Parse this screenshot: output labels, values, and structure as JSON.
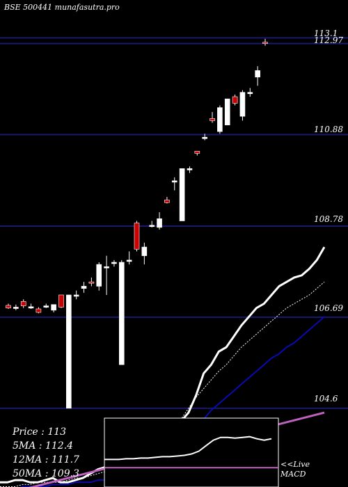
{
  "header": "BSE 500441 munafasutra.pro",
  "info": {
    "price": "Price : 113",
    "ma5": "5MA : 112.4",
    "ma12": "12MA : 111.7",
    "ma50": "50MA : 109.3"
  },
  "macd_label": {
    "line1": "<<Live",
    "line2": "MACD"
  },
  "colors": {
    "background": "#000000",
    "gridline": "#191970",
    "up_candle": "#ffffff",
    "down_candle": "#cc0000",
    "ma_white": "#ffffff",
    "ma_blue": "#0a0ab4",
    "ma_purple": "#c060c0",
    "macd_line": "#ffffff",
    "macd_signal": "#c060c0"
  },
  "chart_data": {
    "type": "candlestick",
    "ylim": [
      102.5,
      113.6
    ],
    "price_levels": [
      "113.1",
      "112.97",
      "110.88",
      "108.78",
      "106.69",
      "104.6"
    ],
    "candles": [
      {
        "o": 106.96,
        "h": 107.0,
        "l": 106.88,
        "c": 106.9
      },
      {
        "o": 106.92,
        "h": 106.98,
        "l": 106.85,
        "c": 106.92
      },
      {
        "o": 107.05,
        "h": 107.1,
        "l": 106.9,
        "c": 106.95
      },
      {
        "o": 106.93,
        "h": 107.0,
        "l": 106.88,
        "c": 106.93
      },
      {
        "o": 106.88,
        "h": 106.92,
        "l": 106.78,
        "c": 106.8
      },
      {
        "o": 106.95,
        "h": 107.0,
        "l": 106.9,
        "c": 106.95
      },
      {
        "o": 106.85,
        "h": 106.98,
        "l": 106.8,
        "c": 106.98
      },
      {
        "o": 107.2,
        "h": 107.2,
        "l": 106.9,
        "c": 106.92
      },
      {
        "o": 104.6,
        "h": 107.2,
        "l": 104.6,
        "c": 107.2
      },
      {
        "o": 107.2,
        "h": 107.3,
        "l": 107.1,
        "c": 107.2
      },
      {
        "o": 107.35,
        "h": 107.5,
        "l": 107.25,
        "c": 107.4
      },
      {
        "o": 107.5,
        "h": 107.6,
        "l": 107.4,
        "c": 107.48
      },
      {
        "o": 107.4,
        "h": 107.95,
        "l": 107.3,
        "c": 107.9
      },
      {
        "o": 107.85,
        "h": 108.1,
        "l": 107.2,
        "c": 107.85
      },
      {
        "o": 107.95,
        "h": 108.0,
        "l": 107.85,
        "c": 107.95
      },
      {
        "o": 105.6,
        "h": 108.0,
        "l": 105.6,
        "c": 107.95
      },
      {
        "o": 108.0,
        "h": 108.2,
        "l": 107.9,
        "c": 108.0
      },
      {
        "o": 108.85,
        "h": 108.9,
        "l": 108.2,
        "c": 108.25
      },
      {
        "o": 108.1,
        "h": 108.4,
        "l": 107.9,
        "c": 108.3
      },
      {
        "o": 108.8,
        "h": 108.9,
        "l": 108.75,
        "c": 108.8
      },
      {
        "o": 108.75,
        "h": 109.1,
        "l": 108.7,
        "c": 108.95
      },
      {
        "o": 109.38,
        "h": 109.45,
        "l": 109.3,
        "c": 109.32
      },
      {
        "o": 109.8,
        "h": 109.9,
        "l": 109.6,
        "c": 109.82
      },
      {
        "o": 108.9,
        "h": 110.1,
        "l": 108.9,
        "c": 110.1
      },
      {
        "o": 110.1,
        "h": 110.15,
        "l": 110.0,
        "c": 110.1
      },
      {
        "o": 110.5,
        "h": 110.5,
        "l": 110.4,
        "c": 110.45
      },
      {
        "o": 110.8,
        "h": 110.9,
        "l": 110.75,
        "c": 110.82
      },
      {
        "o": 111.25,
        "h": 111.4,
        "l": 111.15,
        "c": 111.2
      },
      {
        "o": 110.95,
        "h": 111.55,
        "l": 110.9,
        "c": 111.5
      },
      {
        "o": 111.1,
        "h": 111.7,
        "l": 111.1,
        "c": 111.7
      },
      {
        "o": 111.75,
        "h": 111.8,
        "l": 111.55,
        "c": 111.6
      },
      {
        "o": 111.3,
        "h": 111.9,
        "l": 111.2,
        "c": 111.85
      },
      {
        "o": 111.85,
        "h": 111.95,
        "l": 111.75,
        "c": 111.85
      },
      {
        "o": 112.2,
        "h": 112.45,
        "l": 112.0,
        "c": 112.35
      },
      {
        "o": 113.0,
        "h": 113.08,
        "l": 112.92,
        "c": 112.97
      }
    ],
    "ma_white": [
      102.9,
      102.9,
      102.95,
      102.95,
      102.9,
      102.9,
      102.95,
      103.0,
      102.9,
      102.9,
      102.95,
      103.0,
      103.1,
      103.2,
      103.25,
      103.1,
      103.1,
      103.2,
      103.3,
      103.5,
      103.6,
      103.6,
      103.8,
      104.0,
      104.3,
      104.5,
      104.9,
      105.4,
      105.6,
      105.9,
      106.0,
      106.25,
      106.5,
      106.7,
      106.9,
      107.0,
      107.2,
      107.4,
      107.5,
      107.6,
      107.65,
      107.8,
      108.0,
      108.3
    ],
    "ma_wdot": [
      102.8,
      102.8,
      102.8,
      102.85,
      102.85,
      102.9,
      102.9,
      102.9,
      102.9,
      102.95,
      103.0,
      103.0,
      103.05,
      103.1,
      103.15,
      103.2,
      103.25,
      103.3,
      103.4,
      103.5,
      103.65,
      103.8,
      104.0,
      104.2,
      104.35,
      104.6,
      104.85,
      105.05,
      105.25,
      105.45,
      105.6,
      105.8,
      106.0,
      106.15,
      106.3,
      106.45,
      106.6,
      106.75,
      106.9,
      107.0,
      107.1,
      107.2,
      107.35,
      107.5
    ],
    "ma_blue": [
      102.75,
      102.75,
      102.75,
      102.8,
      102.8,
      102.8,
      102.8,
      102.85,
      102.85,
      102.85,
      102.9,
      102.9,
      102.9,
      102.95,
      102.95,
      103.0,
      103.0,
      103.05,
      103.1,
      103.15,
      103.2,
      103.3,
      103.45,
      103.6,
      103.75,
      103.95,
      104.15,
      104.35,
      104.55,
      104.7,
      104.85,
      105.0,
      105.15,
      105.3,
      105.45,
      105.6,
      105.75,
      105.85,
      106.0,
      106.1,
      106.25,
      106.4,
      106.55,
      106.7
    ],
    "ma_purple_range": [
      102.6,
      104.5
    ],
    "macd": {
      "line": [
        0.4,
        0.4,
        0.4,
        0.41,
        0.41,
        0.42,
        0.42,
        0.43,
        0.44,
        0.44,
        0.45,
        0.46,
        0.48,
        0.52,
        0.6,
        0.68,
        0.72,
        0.72,
        0.71,
        0.72,
        0.73,
        0.7,
        0.68,
        0.7
      ],
      "signal": 0.28
    }
  }
}
